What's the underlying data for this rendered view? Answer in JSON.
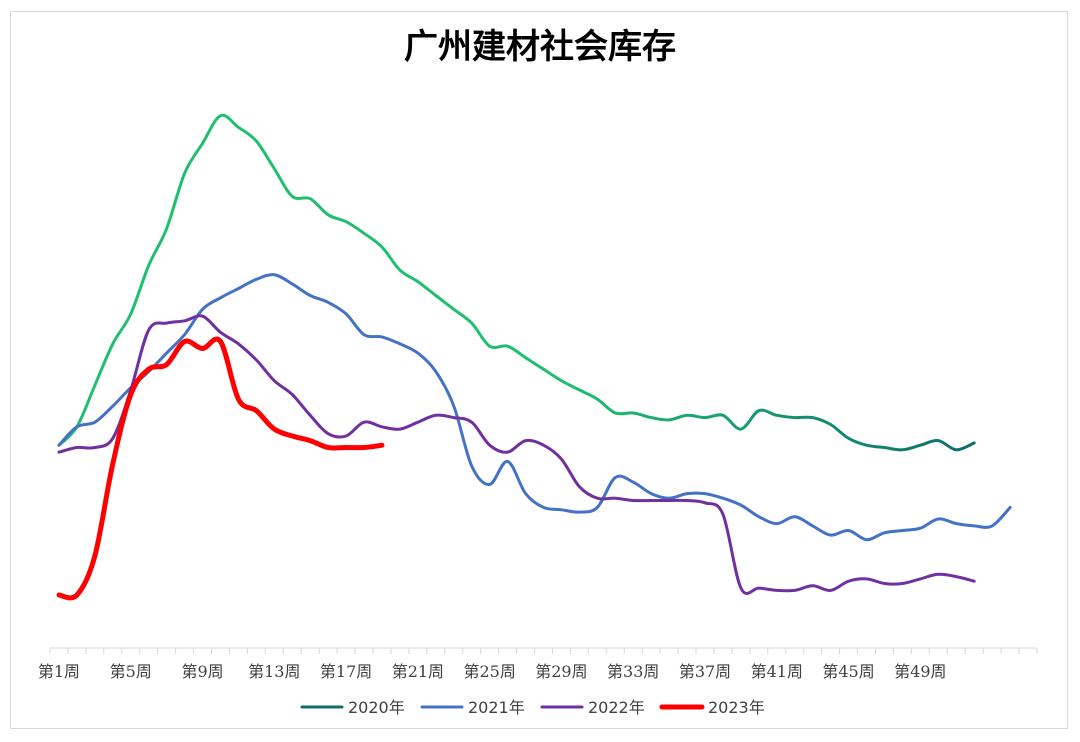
{
  "chart_data": {
    "type": "line",
    "title": "广州建材社会库存",
    "xlabel": "",
    "ylabel": "",
    "x_tick_labels": [
      "第1周",
      "第5周",
      "第9周",
      "第13周",
      "第17周",
      "第21周",
      "第25周",
      "第29周",
      "第33周",
      "第37周",
      "第41周",
      "第45周",
      "第49周"
    ],
    "x_tick_weeks": [
      1,
      5,
      9,
      13,
      17,
      21,
      25,
      29,
      33,
      37,
      41,
      45,
      49
    ],
    "xlim": [
      0.5,
      55.5
    ],
    "ylim": [
      0,
      240
    ],
    "grid": false,
    "legend_position": "bottom",
    "series": [
      {
        "name": "2020年",
        "color": "#1fbf70",
        "color_end": "#0e6e6e",
        "width": 3,
        "values": [
          88,
          96,
          114,
          132,
          145,
          166,
          182,
          206,
          219,
          231,
          226,
          220,
          208,
          196,
          195,
          188,
          185,
          180,
          174,
          164,
          159,
          153,
          147,
          141,
          131,
          131,
          126,
          121,
          116,
          112,
          108,
          102,
          102,
          100,
          99,
          101,
          100,
          101,
          95,
          103,
          101,
          100,
          100,
          97,
          91,
          88,
          87,
          86,
          88,
          90,
          86,
          89
        ]
      },
      {
        "name": "2021年",
        "color": "#4472c4",
        "width": 3,
        "values": [
          88,
          96,
          98,
          105,
          113,
          120,
          128,
          136,
          147,
          152,
          156,
          160,
          162,
          158,
          153,
          150,
          145,
          136,
          135,
          132,
          128,
          120,
          105,
          79,
          71,
          81,
          67,
          61,
          60,
          59,
          61,
          74,
          72,
          67,
          65,
          67,
          67,
          65,
          62,
          57,
          54,
          57,
          53,
          49,
          51,
          47,
          50,
          51,
          52,
          56,
          54,
          53,
          53,
          61
        ]
      },
      {
        "name": "2022年",
        "color": "#7030a0",
        "width": 3,
        "values": [
          85,
          87,
          87,
          91,
          112,
          138,
          141,
          142,
          144,
          137,
          132,
          125,
          116,
          110,
          101,
          93,
          92,
          98,
          96,
          95,
          98,
          101,
          100,
          98,
          88,
          85,
          90,
          88,
          82,
          70,
          65,
          65,
          64,
          64,
          64,
          64,
          63,
          58,
          26,
          26,
          25,
          25,
          27,
          25,
          29,
          30,
          28,
          28,
          30,
          32,
          31,
          29
        ]
      },
      {
        "name": "2023年",
        "color": "#ff0000",
        "width": 5,
        "values": [
          23,
          23,
          40,
          80,
          110,
          121,
          123,
          133,
          130,
          133,
          108,
          103,
          95,
          92,
          90,
          87,
          87,
          87,
          88
        ]
      }
    ]
  }
}
